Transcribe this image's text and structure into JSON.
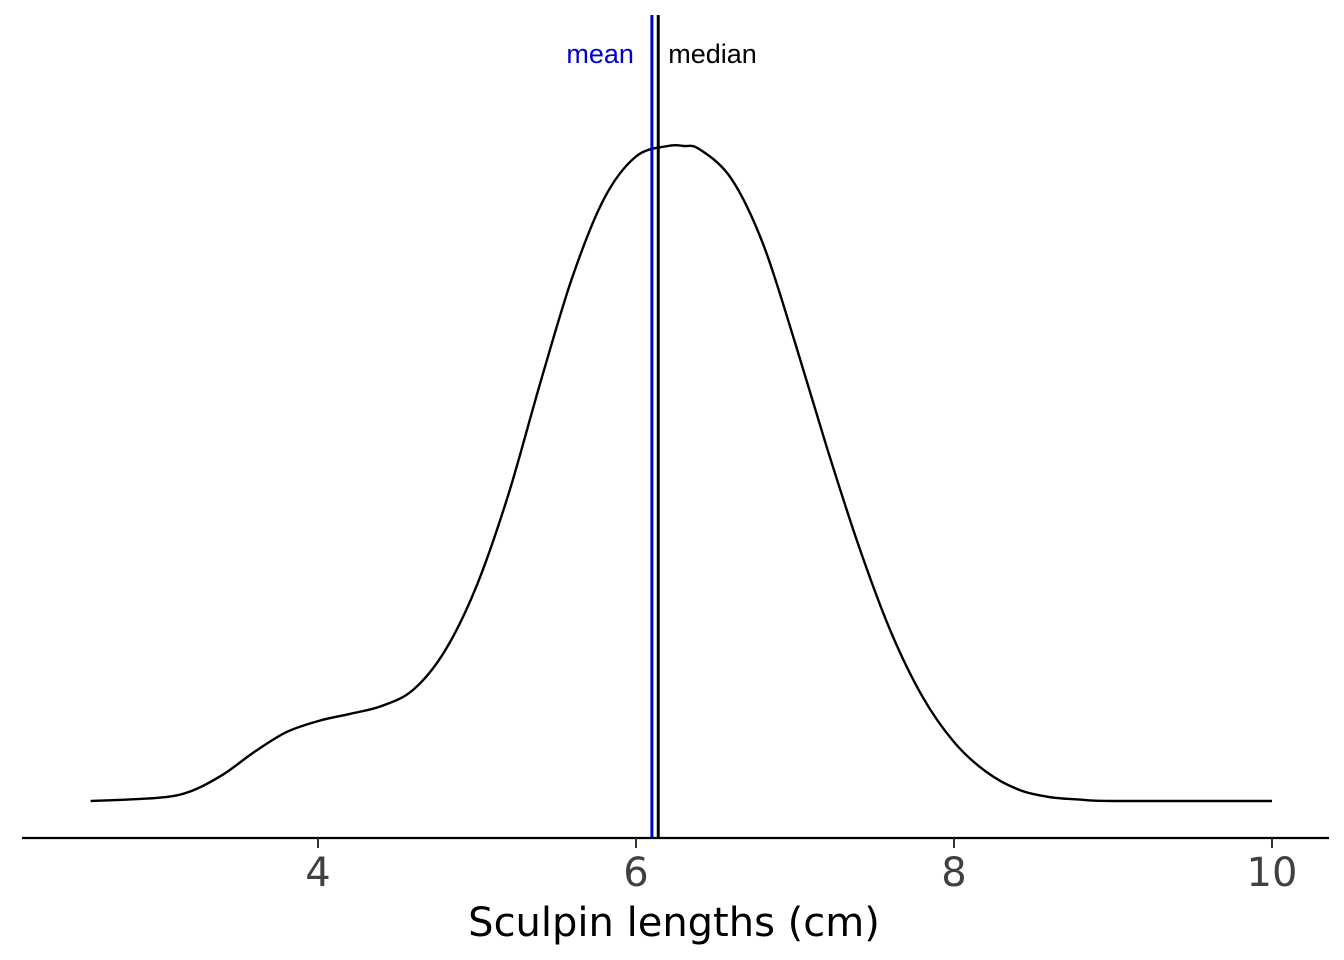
{
  "chart_data": {
    "type": "area",
    "xlabel": "Sculpin lengths (cm)",
    "ylabel": "",
    "xlim": [
      2.57,
      10.0
    ],
    "x_ticks": [
      4,
      6,
      8,
      10
    ],
    "tick_labels": [
      "4",
      "6",
      "8",
      "10"
    ],
    "grid": false,
    "series": [
      {
        "x": [
          2.57,
          3.0,
          3.2,
          3.4,
          3.6,
          3.8,
          4.0,
          4.2,
          4.4,
          4.6,
          4.8,
          5.0,
          5.2,
          5.4,
          5.6,
          5.8,
          6.0,
          6.2,
          6.3,
          6.4,
          6.6,
          6.8,
          7.0,
          7.2,
          7.4,
          7.6,
          7.8,
          8.0,
          8.2,
          8.4,
          8.6,
          8.8,
          9.0,
          10.0
        ],
        "y": [
          0.0,
          0.005,
          0.015,
          0.04,
          0.075,
          0.105,
          0.122,
          0.133,
          0.145,
          0.17,
          0.23,
          0.33,
          0.47,
          0.64,
          0.8,
          0.92,
          0.984,
          1.0,
          1.0,
          0.995,
          0.95,
          0.85,
          0.7,
          0.54,
          0.39,
          0.26,
          0.16,
          0.09,
          0.045,
          0.018,
          0.006,
          0.002,
          0.0,
          0.0
        ]
      }
    ],
    "vlines": [
      {
        "label": "mean",
        "x": 6.1,
        "color": "#0000cd"
      },
      {
        "label": "median",
        "x": 6.14,
        "color": "#000000"
      }
    ]
  }
}
